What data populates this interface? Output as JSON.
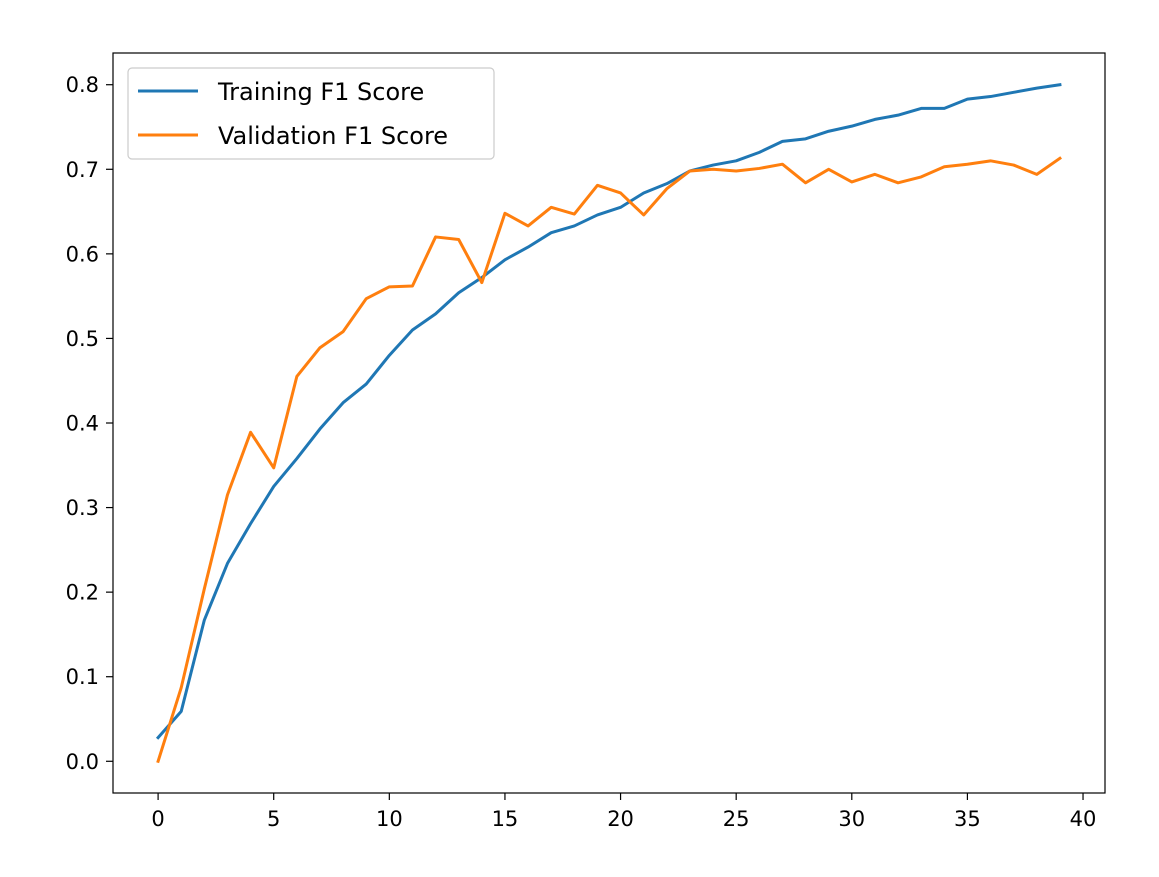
{
  "chart_data": {
    "type": "line",
    "title": "",
    "xlabel": "",
    "ylabel": "",
    "xlim": [
      -1.95,
      40.95
    ],
    "ylim": [
      -0.0375,
      0.8375
    ],
    "x_ticks": [
      0,
      5,
      10,
      15,
      20,
      25,
      30,
      35,
      40
    ],
    "y_ticks": [
      0.0,
      0.1,
      0.2,
      0.3,
      0.4,
      0.5,
      0.6,
      0.7,
      0.8
    ],
    "x_tick_labels": [
      "0",
      "5",
      "10",
      "15",
      "20",
      "25",
      "30",
      "35",
      "40"
    ],
    "y_tick_labels": [
      "0.0",
      "0.1",
      "0.2",
      "0.3",
      "0.4",
      "0.5",
      "0.6",
      "0.7",
      "0.8"
    ],
    "grid": false,
    "legend_position": "top-left",
    "x": [
      0,
      1,
      2,
      3,
      4,
      5,
      6,
      7,
      8,
      9,
      10,
      11,
      12,
      13,
      14,
      15,
      16,
      17,
      18,
      19,
      20,
      21,
      22,
      23,
      24,
      25,
      26,
      27,
      28,
      29,
      30,
      31,
      32,
      33,
      34,
      35,
      36,
      37,
      38,
      39
    ],
    "series": [
      {
        "name": "Training F1 Score",
        "color": "#1f77b4",
        "values": [
          0.028,
          0.059,
          0.167,
          0.234,
          0.281,
          0.325,
          0.358,
          0.393,
          0.424,
          0.446,
          0.48,
          0.51,
          0.529,
          0.554,
          0.572,
          0.593,
          0.608,
          0.625,
          0.633,
          0.646,
          0.655,
          0.672,
          0.683,
          0.698,
          0.705,
          0.71,
          0.72,
          0.733,
          0.736,
          0.745,
          0.751,
          0.759,
          0.764,
          0.772,
          0.772,
          0.783,
          0.786,
          0.791,
          0.796,
          0.8
        ]
      },
      {
        "name": "Validation F1 Score",
        "color": "#ff7f0e",
        "values": [
          0.0,
          0.087,
          0.204,
          0.315,
          0.389,
          0.347,
          0.455,
          0.489,
          0.508,
          0.547,
          0.561,
          0.562,
          0.62,
          0.617,
          0.566,
          0.648,
          0.633,
          0.655,
          0.647,
          0.681,
          0.672,
          0.646,
          0.677,
          0.698,
          0.7,
          0.698,
          0.701,
          0.706,
          0.684,
          0.7,
          0.685,
          0.694,
          0.684,
          0.691,
          0.703,
          0.706,
          0.71,
          0.705,
          0.694,
          0.713
        ]
      }
    ]
  }
}
